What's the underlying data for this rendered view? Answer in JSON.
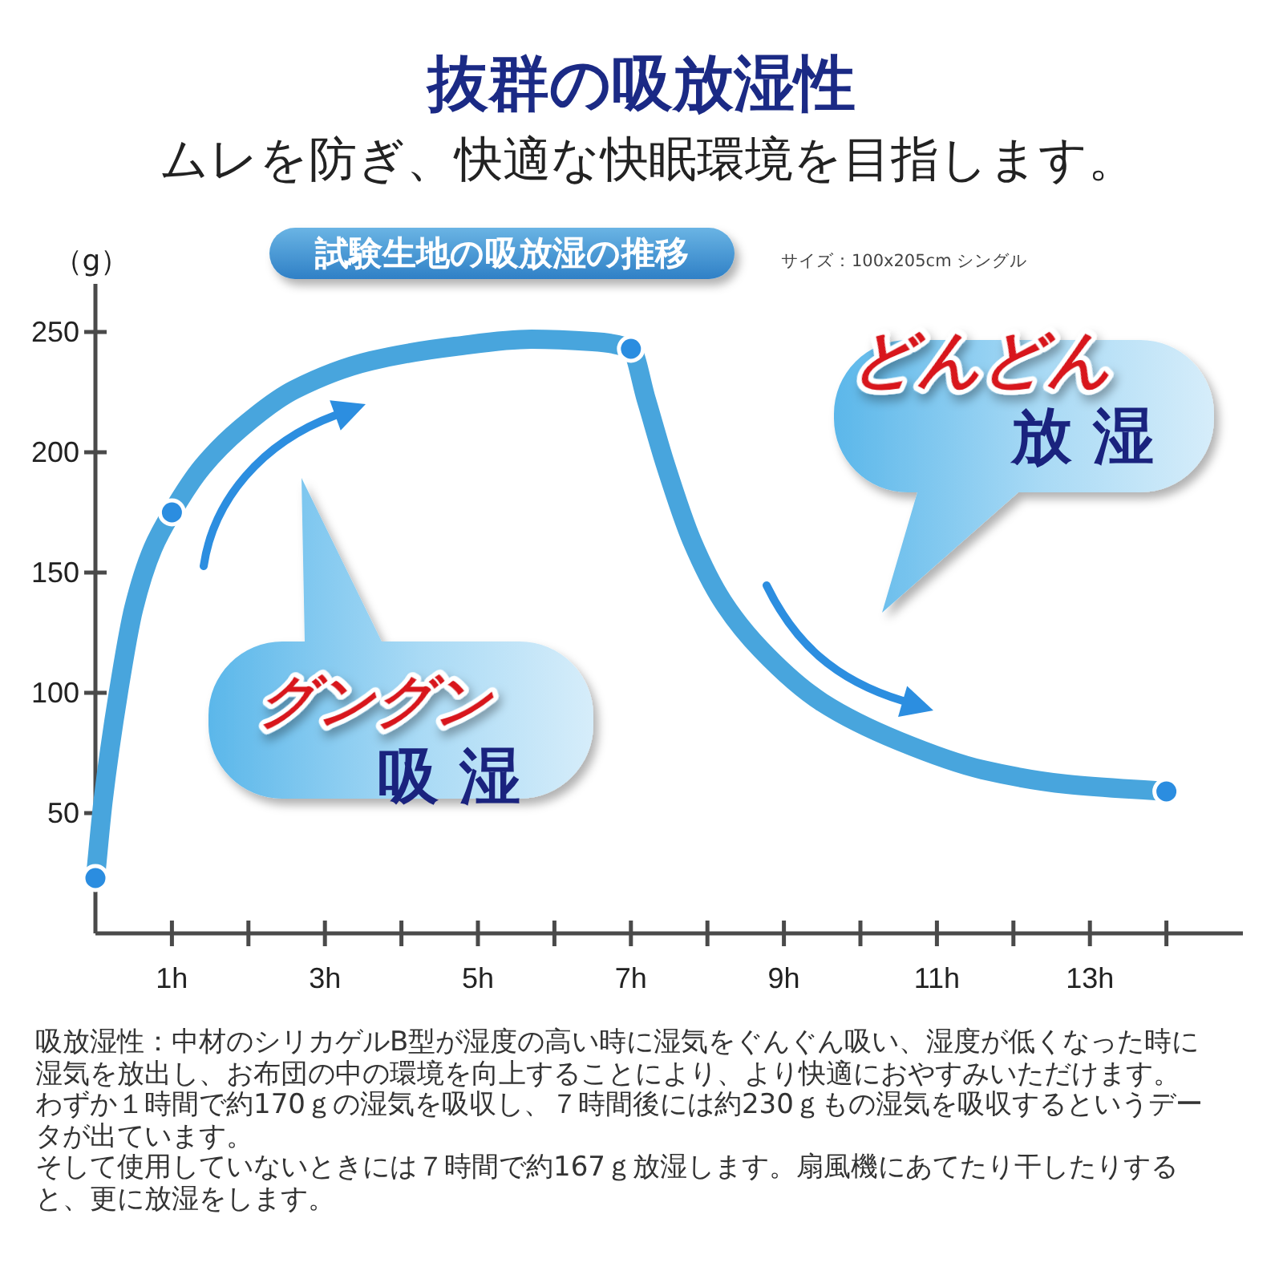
{
  "chart_data": {
    "type": "line",
    "title": "抜群の吸放湿性",
    "subtitle": "ムレを防ぎ、快適な快眠環境を目指します。",
    "ylabel": "（g）",
    "annotations": [
      "試験生地の吸放湿の推移",
      "サイズ：100x205cm シングル",
      "グングン",
      "吸 湿",
      "どんどん",
      "放 湿",
      "吸放湿性：中材のシリカゲルB型が湿度の高い時に湿気をぐんぐん吸い、湿度が低くなった時に湿気を放出し、お布団の中の環境を向上することにより、より快適におやすみいただけます。",
      "わずか１時間で約170ｇの湿気を吸収し、７時間後には約230ｇもの湿気を吸収するというデータが出ています。",
      "そして使用していないときには７時間で約167ｇ放湿します。扇風機にあてたり干したりすると、更に放湿をします。"
    ],
    "xlim": [
      0,
      15
    ],
    "xticks": [
      {
        "value": 1,
        "label": "1h"
      },
      {
        "value": 2,
        "label": null
      },
      {
        "value": 3,
        "label": "3h"
      },
      {
        "value": 4,
        "label": null
      },
      {
        "value": 5,
        "label": "5h"
      },
      {
        "value": 6,
        "label": null
      },
      {
        "value": 7,
        "label": "7h"
      },
      {
        "value": 8,
        "label": null
      },
      {
        "value": 9,
        "label": "9h"
      },
      {
        "value": 10,
        "label": null
      },
      {
        "value": 11,
        "label": "11h"
      },
      {
        "value": 12,
        "label": null
      },
      {
        "value": 13,
        "label": "13h"
      },
      {
        "value": 14,
        "label": null
      }
    ],
    "ylim": [
      0,
      270
    ],
    "yticks": [
      50,
      100,
      150,
      200,
      250
    ],
    "grid": false,
    "series": [
      {
        "color": "#48a5dd",
        "marker": "none",
        "line_style": "solid",
        "x": [
          0,
          0.1,
          0.3,
          0.5,
          0.75,
          1,
          1.4,
          1.9,
          2.6,
          3.6,
          4.7,
          5.7,
          6.5,
          7,
          7.2,
          7.45,
          7.8,
          8.2,
          8.7,
          9.5,
          10.5,
          11.6,
          12.7,
          14
        ],
        "values": [
          23,
          55,
          100,
          135,
          160,
          175,
          194,
          210,
          226,
          238,
          244,
          247,
          246,
          243,
          222,
          195,
          163,
          138,
          118,
          96,
          80,
          68,
          62,
          59
        ]
      },
      {
        "type": "scatter",
        "color": "#2b8de0",
        "marker": "circle",
        "x": [
          0,
          1,
          7,
          14
        ],
        "values": [
          23,
          175,
          243,
          59
        ]
      }
    ]
  }
}
